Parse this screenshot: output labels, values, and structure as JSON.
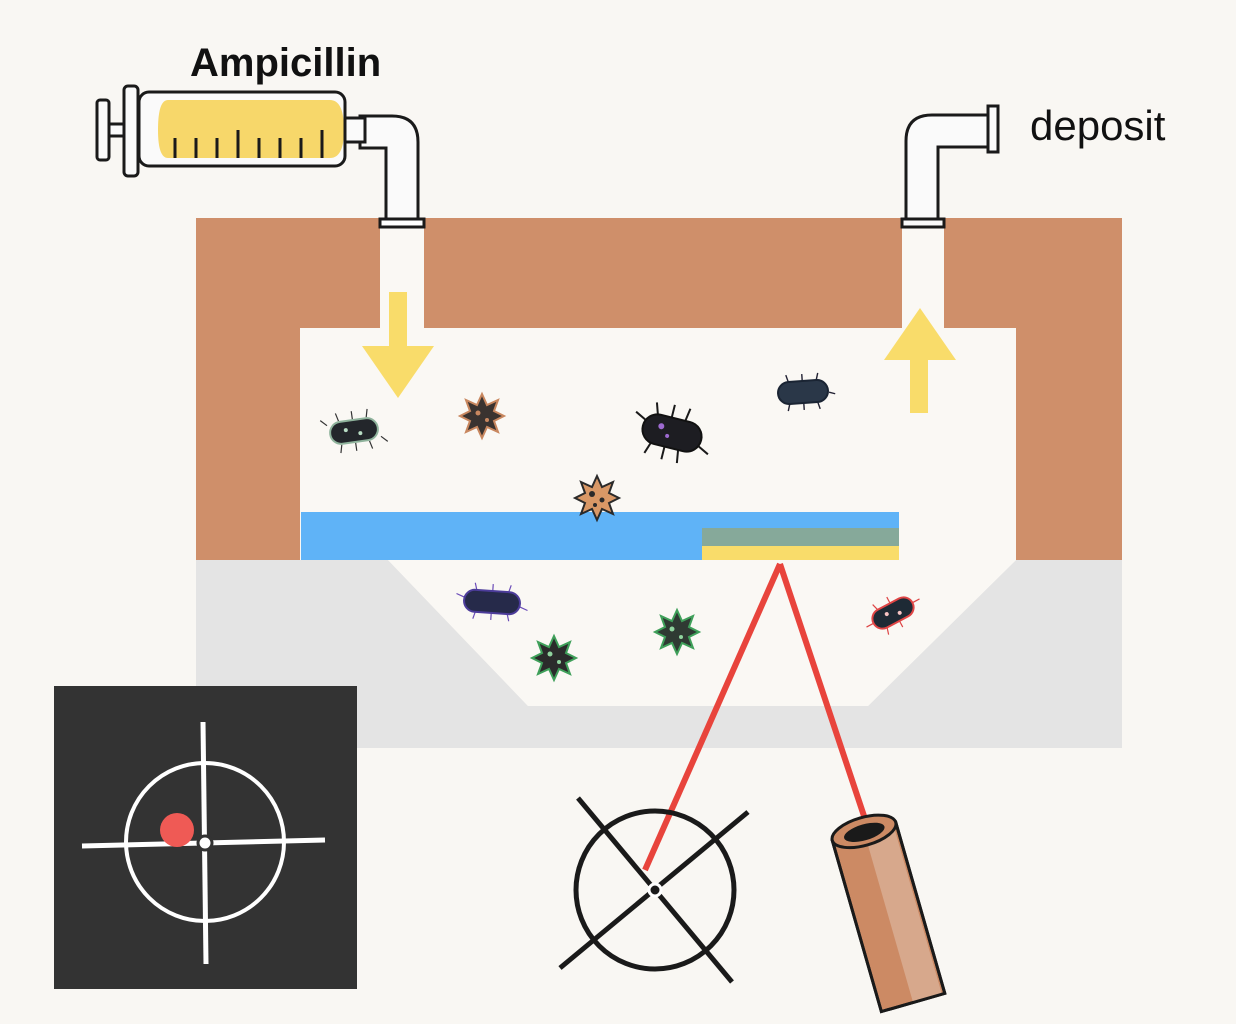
{
  "labels": {
    "input_drug": "Ampicillin",
    "output": "deposit"
  },
  "colors": {
    "background": "#f9f7f3",
    "chamber_wall": "#cf8f6a",
    "chamber_interior": "#faf8f4",
    "base": "#e4e4e4",
    "water_layer": "#5fb3f7",
    "sensor_top": "#86a99a",
    "sensor_bottom": "#f9dc6a",
    "flow_arrow": "#f9dc6a",
    "laser": "#e8443c",
    "syringe_fluid": "#f7d76a",
    "inset_bg": "#333333",
    "inset_dot": "#ef5a55",
    "tube": "#cc8a64"
  },
  "icons": {
    "syringe": "syringe-icon",
    "inlet_pipe": "inlet-pipe-icon",
    "outlet_pipe": "outlet-pipe-icon",
    "detector": "quadrant-photodetector-icon",
    "laser_source": "laser-source-icon",
    "inset": "crosshair-target-icon",
    "bacteria": "bacterium-icon"
  }
}
